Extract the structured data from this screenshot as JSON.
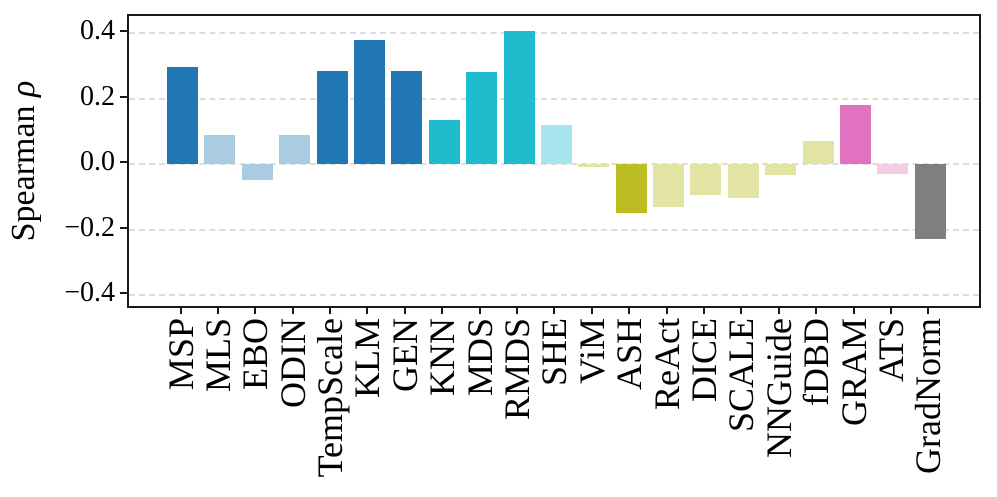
{
  "chart_data": {
    "type": "bar",
    "title": "",
    "xlabel": "",
    "ylabel": "Spearman ρ",
    "ylim": [
      -0.45,
      0.45
    ],
    "grid": true,
    "grid_style": "dashed",
    "legend_position": "none",
    "yticks": [
      {
        "value": 0.4,
        "label": "0.4"
      },
      {
        "value": 0.2,
        "label": "0.2"
      },
      {
        "value": 0.0,
        "label": "0.0"
      },
      {
        "value": -0.2,
        "label": "−0.2"
      },
      {
        "value": -0.4,
        "label": "−0.4"
      }
    ],
    "categories": [
      "MSP",
      "MLS",
      "EBO",
      "ODIN",
      "TempScale",
      "KLM",
      "GEN",
      "KNN",
      "MDS",
      "RMDS",
      "SHE",
      "ViM",
      "ASH",
      "ReAct",
      "DICE",
      "SCALE",
      "NNGuide",
      "fDBD",
      "GRAM",
      "ATS",
      "GradNorm"
    ],
    "values": [
      0.295,
      0.09,
      -0.05,
      0.09,
      0.285,
      0.38,
      0.285,
      0.135,
      0.28,
      0.405,
      0.12,
      -0.01,
      -0.15,
      -0.13,
      -0.095,
      -0.105,
      -0.035,
      0.07,
      0.18,
      -0.03,
      -0.23
    ],
    "bar_colors": [
      "#2077b4",
      "#a9cce2",
      "#a9cce2",
      "#a9cce2",
      "#2077b4",
      "#2077b4",
      "#2077b4",
      "#1fbcce",
      "#1fbcce",
      "#1fbcce",
      "#a7e5ee",
      "#e3e3a3",
      "#bcbd22",
      "#e3e3a3",
      "#e3e3a3",
      "#e3e3a3",
      "#e3e3a3",
      "#e3e3a3",
      "#e172c0",
      "#f5cce6",
      "#7f7f7f"
    ]
  },
  "style": {
    "background_color": "#ffffff",
    "frame_color": "#1a1a1a",
    "grid_color": "#dcdcdc",
    "tick_color": "#1a1a1a"
  }
}
